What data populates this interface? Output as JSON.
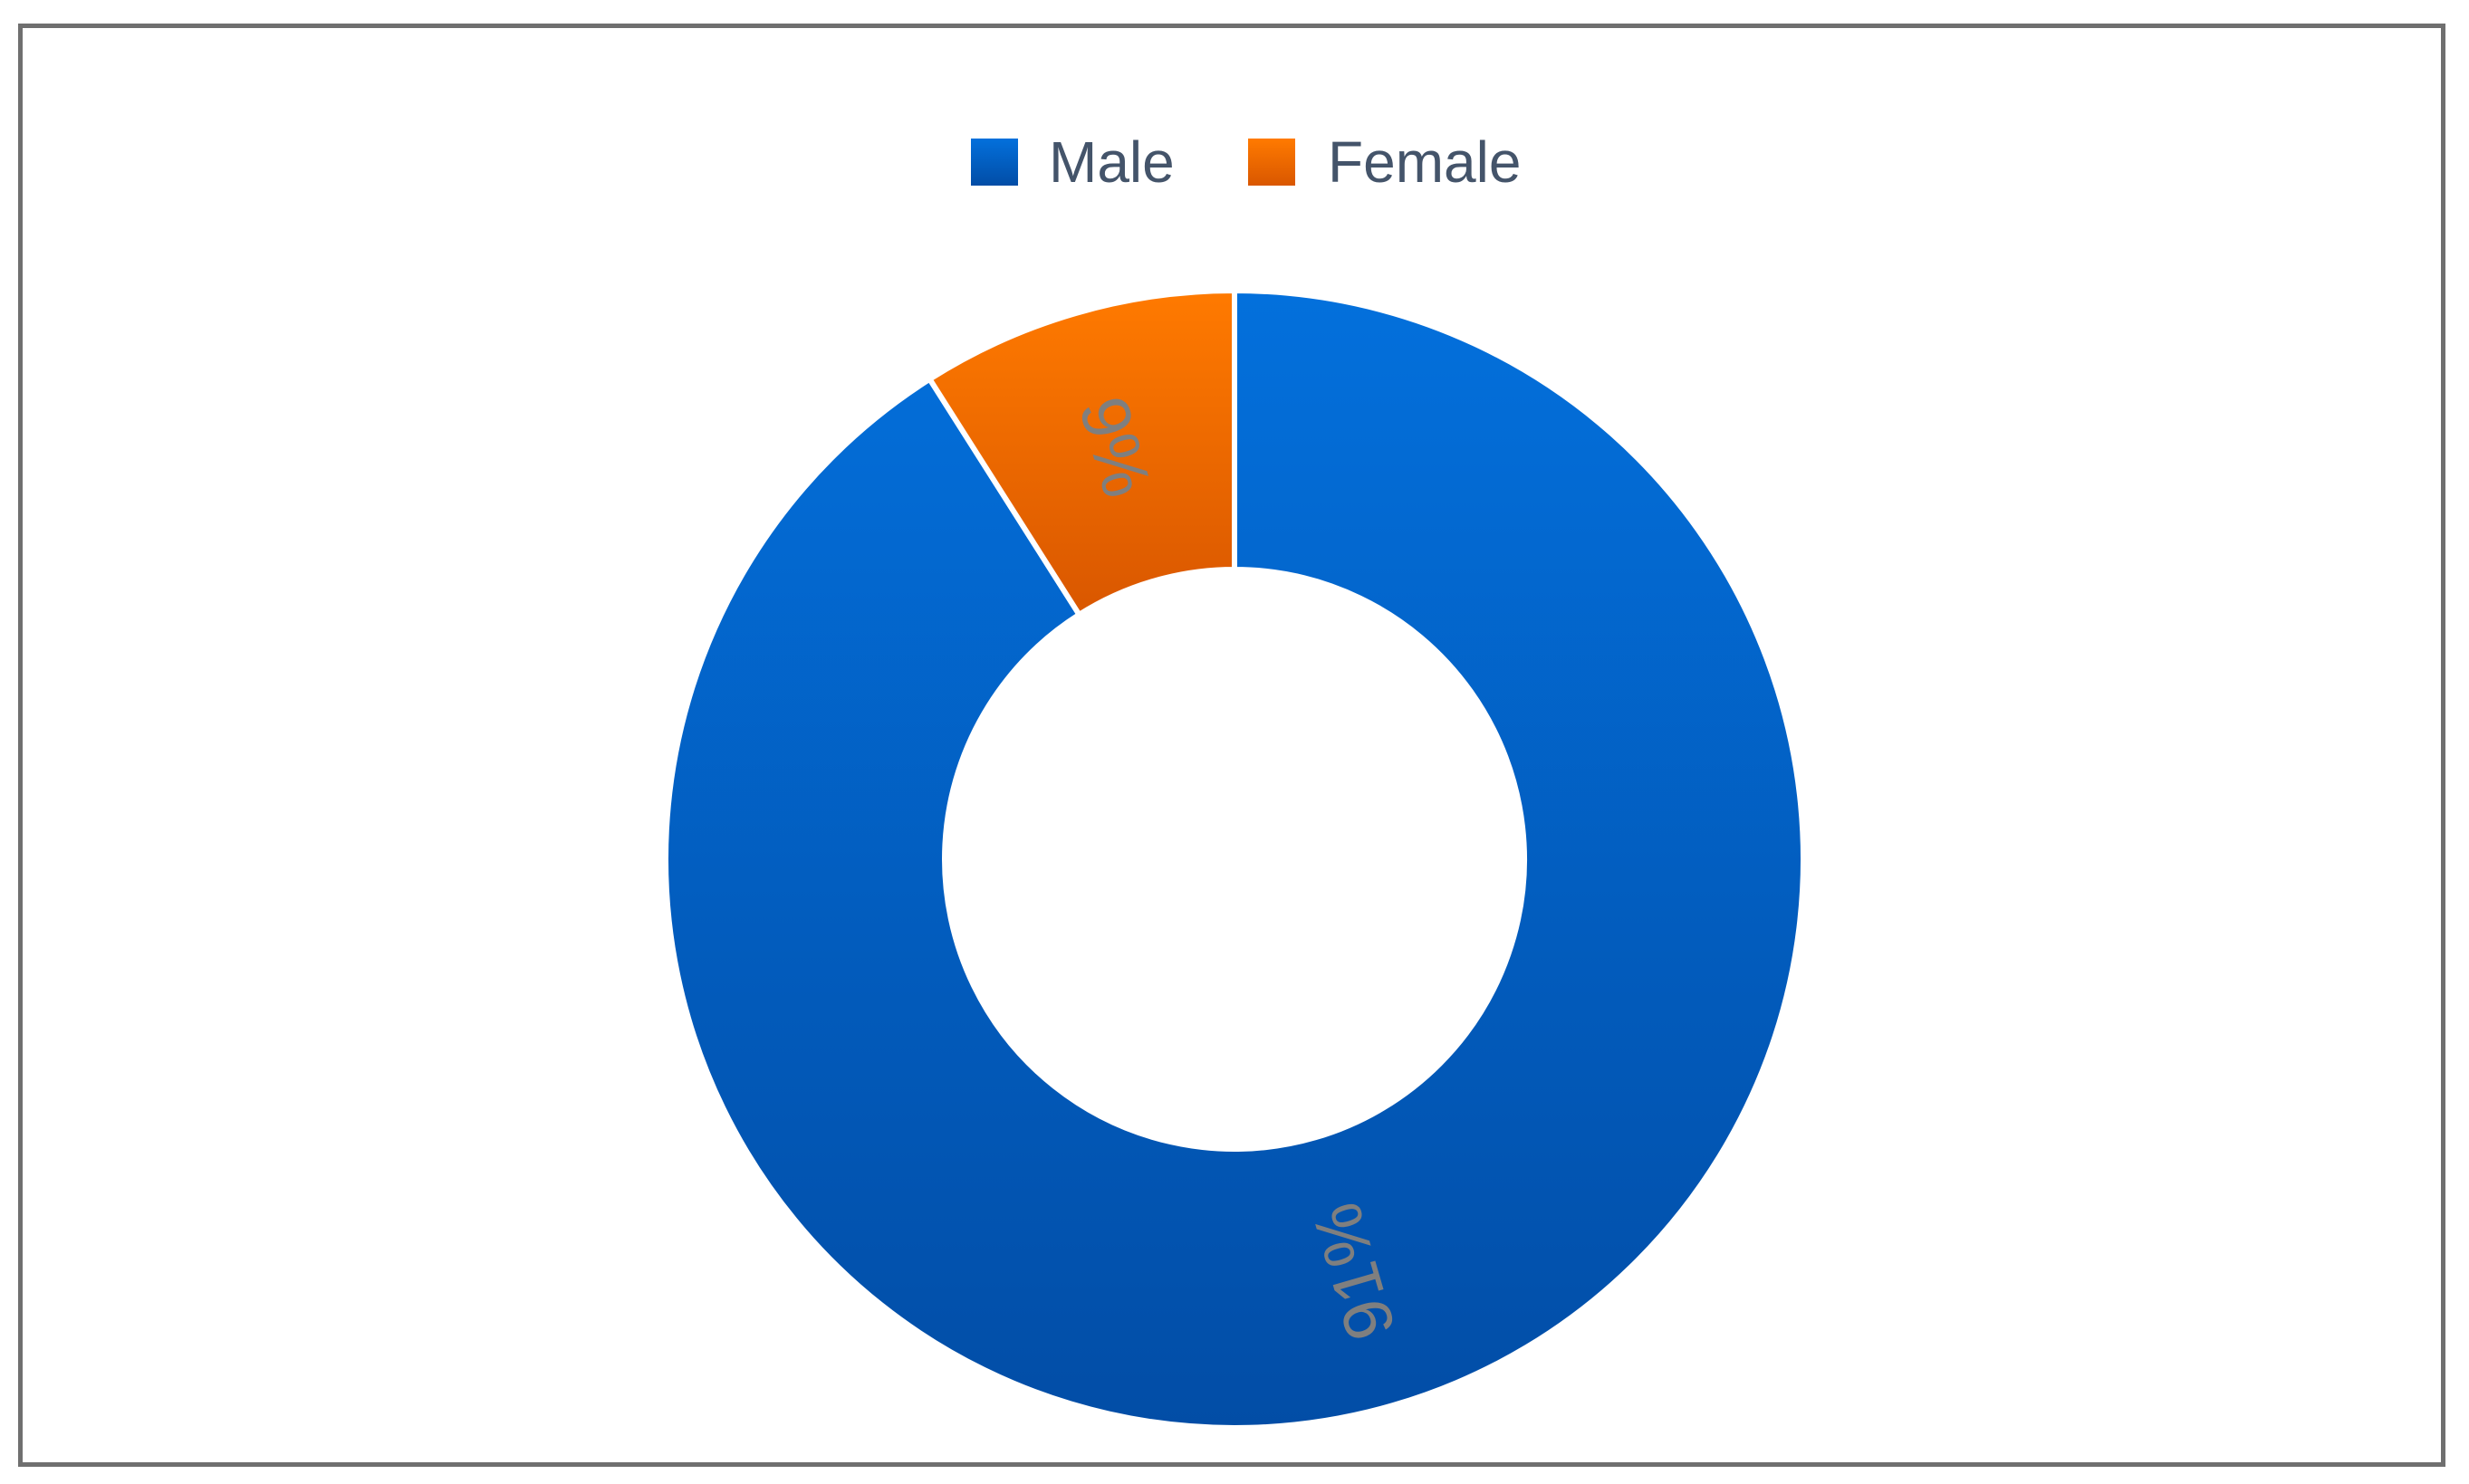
{
  "chart_data": {
    "type": "pie",
    "variant": "doughnut",
    "categories": [
      "Male",
      "Female"
    ],
    "values": [
      91,
      9
    ],
    "labels": [
      "91%",
      "9%"
    ],
    "colors": {
      "Male": "#0264cf",
      "Female": "#fb7202"
    },
    "gradient_colors": {
      "Male": [
        "#0370dc",
        "#024da6"
      ],
      "Female": [
        "#ff7a00",
        "#d95700"
      ]
    },
    "label_color": "#7f7f7f",
    "legend": {
      "placement": "top",
      "items": [
        {
          "name": "Male",
          "color": "#0264cf"
        },
        {
          "name": "Female",
          "color": "#fb7202"
        }
      ]
    },
    "start": "12 o'clock",
    "direction": "clockwise",
    "title": ""
  }
}
